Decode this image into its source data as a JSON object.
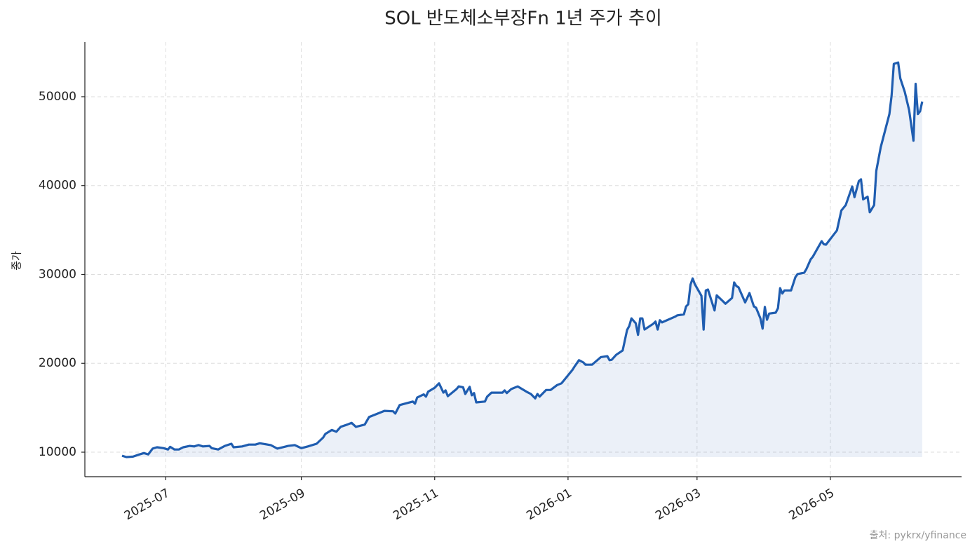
{
  "chart_data": {
    "type": "line",
    "title": "SOL 반도체소부장Fn 1년 주가 추이",
    "y_label": "종가",
    "source": "출처: pykrx/yfinance",
    "color": "#1f5db0",
    "fill": true,
    "grid": true,
    "x": [
      "2025-06-11",
      "2025-06-13",
      "2025-06-16",
      "2025-06-19",
      "2025-06-21",
      "2025-06-23",
      "2025-06-25",
      "2025-06-27",
      "2025-06-30",
      "2025-07-02",
      "2025-07-03",
      "2025-07-05",
      "2025-07-07",
      "2025-07-09",
      "2025-07-12",
      "2025-07-14",
      "2025-07-16",
      "2025-07-18",
      "2025-07-21",
      "2025-07-22",
      "2025-07-25",
      "2025-07-28",
      "2025-07-31",
      "2025-08-01",
      "2025-08-05",
      "2025-08-08",
      "2025-08-11",
      "2025-08-13",
      "2025-08-18",
      "2025-08-21",
      "2025-08-26",
      "2025-08-29",
      "2025-09-01",
      "2025-09-04",
      "2025-09-08",
      "2025-09-11",
      "2025-09-12",
      "2025-09-15",
      "2025-09-17",
      "2025-09-19",
      "2025-09-22",
      "2025-09-24",
      "2025-09-26",
      "2025-09-30",
      "2025-10-02",
      "2025-10-09",
      "2025-10-13",
      "2025-10-14",
      "2025-10-16",
      "2025-10-19",
      "2025-10-22",
      "2025-10-23",
      "2025-10-24",
      "2025-10-27",
      "2025-10-28",
      "2025-10-29",
      "2025-11-01",
      "2025-11-03",
      "2025-11-05",
      "2025-11-06",
      "2025-11-07",
      "2025-11-11",
      "2025-11-12",
      "2025-11-14",
      "2025-11-15",
      "2025-11-17",
      "2025-11-18",
      "2025-11-19",
      "2025-11-20",
      "2025-11-24",
      "2025-11-25",
      "2025-11-27",
      "2025-12-02",
      "2025-12-03",
      "2025-12-04",
      "2025-12-06",
      "2025-12-09",
      "2025-12-10",
      "2025-12-13",
      "2025-12-15",
      "2025-12-17",
      "2025-12-18",
      "2025-12-19",
      "2025-12-22",
      "2025-12-24",
      "2025-12-27",
      "2025-12-29",
      "2025-12-30",
      "2026-01-03",
      "2026-01-04",
      "2026-01-06",
      "2026-01-08",
      "2026-01-09",
      "2026-01-12",
      "2026-01-16",
      "2026-01-19",
      "2026-01-20",
      "2026-01-21",
      "2026-01-23",
      "2026-01-26",
      "2026-01-28",
      "2026-01-29",
      "2026-01-30",
      "2026-02-01",
      "2026-02-02",
      "2026-02-03",
      "2026-02-04",
      "2026-02-05",
      "2026-02-09",
      "2026-02-10",
      "2026-02-11",
      "2026-02-12",
      "2026-02-13",
      "2026-02-19",
      "2026-02-20",
      "2026-02-23",
      "2026-02-24",
      "2026-02-25",
      "2026-02-26",
      "2026-02-27",
      "2026-02-28",
      "2026-03-03",
      "2026-03-04",
      "2026-03-05",
      "2026-03-06",
      "2026-03-09",
      "2026-03-10",
      "2026-03-13",
      "2026-03-14",
      "2026-03-17",
      "2026-03-18",
      "2026-03-19",
      "2026-03-20",
      "2026-03-23",
      "2026-03-25",
      "2026-03-27",
      "2026-03-28",
      "2026-03-30",
      "2026-03-31",
      "2026-04-01",
      "2026-04-02",
      "2026-04-03",
      "2026-04-06",
      "2026-04-07",
      "2026-04-08",
      "2026-04-09",
      "2026-04-10",
      "2026-04-13",
      "2026-04-15",
      "2026-04-16",
      "2026-04-19",
      "2026-04-20",
      "2026-04-22",
      "2026-04-23",
      "2026-04-27",
      "2026-04-28",
      "2026-04-29",
      "2026-05-04",
      "2026-05-06",
      "2026-05-08",
      "2026-05-11",
      "2026-05-12",
      "2026-05-14",
      "2026-05-15",
      "2026-05-16",
      "2026-05-18",
      "2026-05-19",
      "2026-05-21",
      "2026-05-22",
      "2026-05-24",
      "2026-05-28",
      "2026-05-29",
      "2026-05-30",
      "2026-06-01",
      "2026-06-02",
      "2026-06-04",
      "2026-06-06",
      "2026-06-08",
      "2026-06-09",
      "2026-06-10",
      "2026-06-11",
      "2026-06-12"
    ],
    "values": [
      9600,
      9450,
      9500,
      9750,
      9900,
      9750,
      10400,
      10550,
      10450,
      10300,
      10600,
      10300,
      10300,
      10550,
      10700,
      10650,
      10800,
      10650,
      10700,
      10450,
      10300,
      10700,
      10950,
      10550,
      10650,
      10850,
      10850,
      11000,
      10800,
      10400,
      10700,
      10800,
      10450,
      10650,
      10950,
      11650,
      12050,
      12500,
      12300,
      12850,
      13100,
      13300,
      12850,
      13100,
      13950,
      14650,
      14600,
      14350,
      15300,
      15500,
      15700,
      15450,
      16150,
      16500,
      16250,
      16800,
      17250,
      17750,
      16700,
      16950,
      16300,
      17100,
      17400,
      17300,
      16550,
      17350,
      16400,
      16650,
      15600,
      15700,
      16250,
      16700,
      16700,
      16950,
      16650,
      17100,
      17400,
      17250,
      16800,
      16550,
      16050,
      16550,
      16250,
      17000,
      17000,
      17550,
      17750,
      18050,
      19250,
      19650,
      20350,
      20100,
      19850,
      19850,
      20700,
      20800,
      20350,
      20400,
      20950,
      21450,
      23750,
      24200,
      25050,
      24500,
      23200,
      25050,
      25050,
      23800,
      24450,
      24700,
      23800,
      24850,
      24600,
      25250,
      25400,
      25500,
      26400,
      26650,
      28850,
      29550,
      28900,
      27600,
      23800,
      28200,
      28300,
      25950,
      27650,
      26950,
      26700,
      27350,
      29100,
      28700,
      28550,
      26850,
      27900,
      26400,
      26250,
      25050,
      23900,
      26350,
      24900,
      25600,
      25700,
      26200,
      28450,
      27850,
      28200,
      28200,
      29700,
      30050,
      30200,
      30600,
      31700,
      32000,
      33750,
      33400,
      33350,
      34950,
      37200,
      37800,
      39900,
      38700,
      40500,
      40700,
      38450,
      38750,
      37000,
      37800,
      41650,
      44300,
      48050,
      50100,
      53700,
      53850,
      52050,
      50550,
      48500,
      45050,
      51450,
      48050,
      48350,
      49450
    ],
    "xlim": [
      "2025-05-25",
      "2026-06-30"
    ],
    "xticks": [
      "2025-07",
      "2025-09",
      "2025-11",
      "2026-01",
      "2026-03",
      "2026-05"
    ],
    "ylim": [
      7240,
      56150
    ],
    "yticks": [
      10000,
      20000,
      30000,
      40000,
      50000
    ]
  }
}
